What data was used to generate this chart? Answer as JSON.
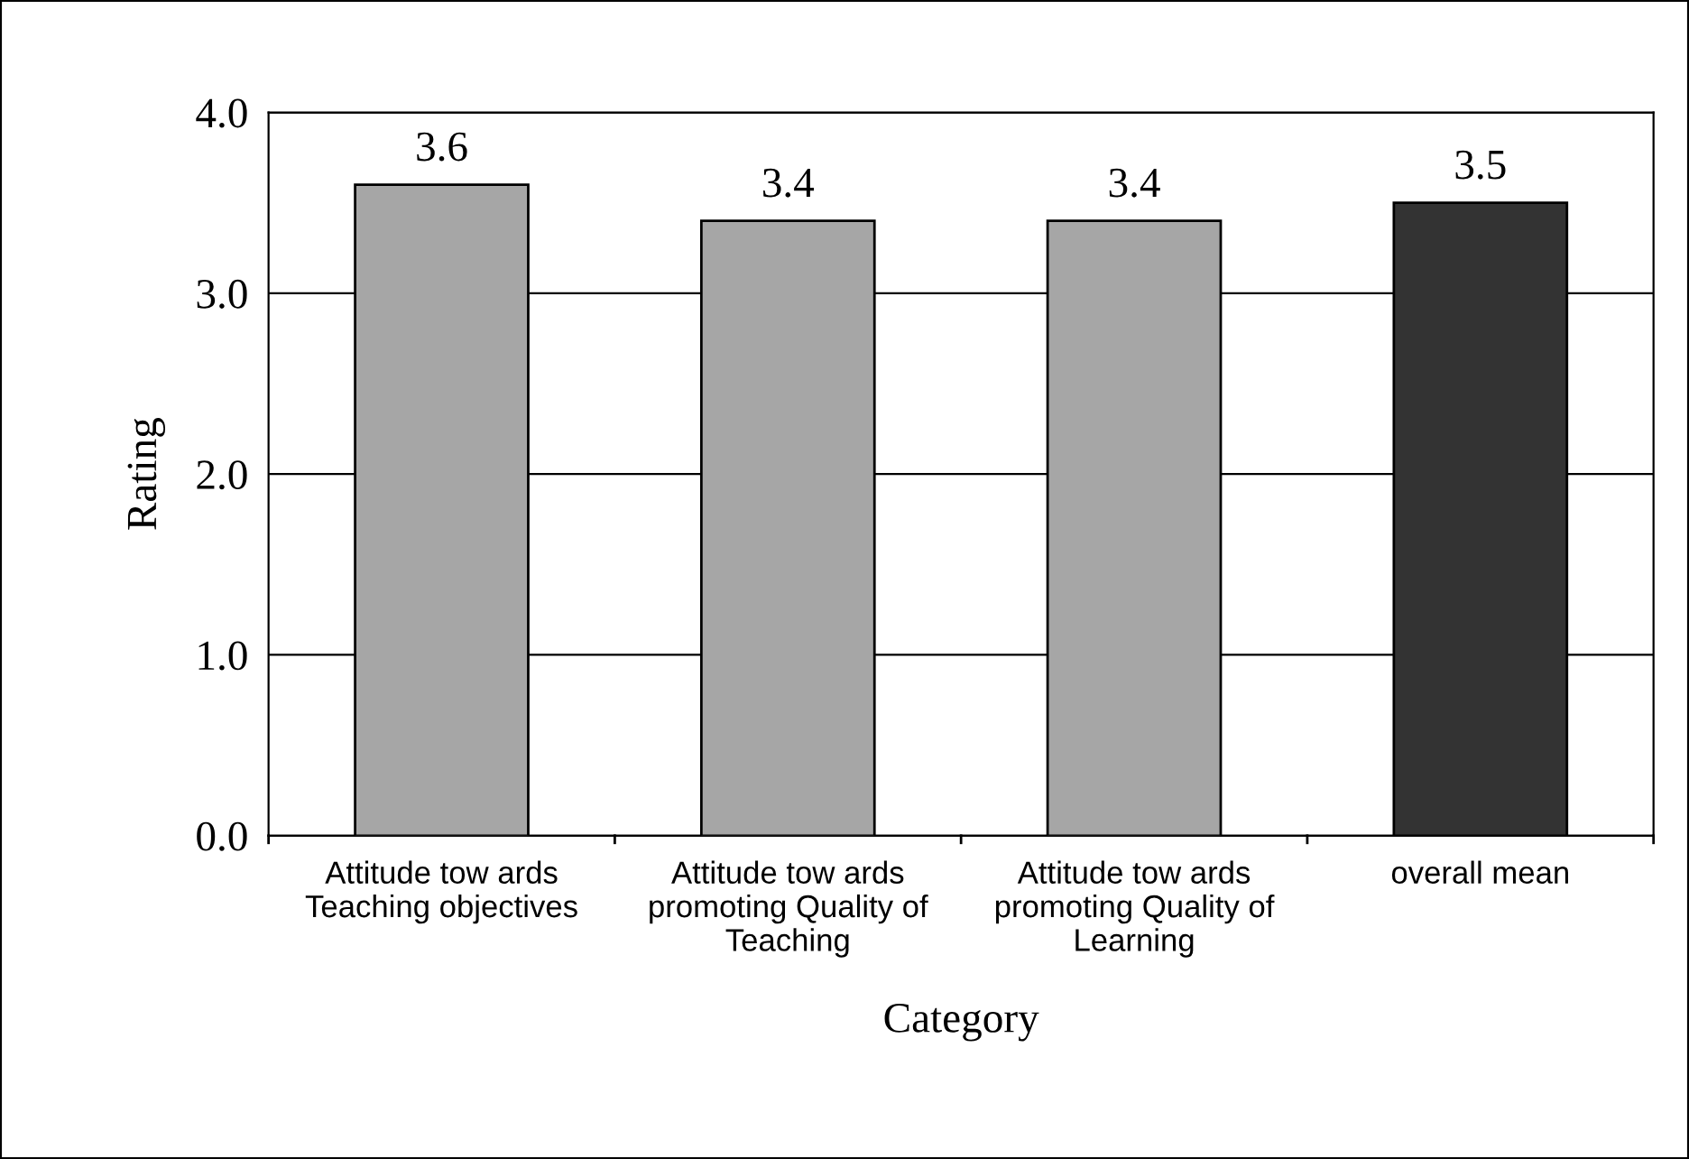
{
  "chart_data": {
    "type": "bar",
    "xlabel": "Category",
    "ylabel": "Rating",
    "categories": [
      "Attitude tow ards\nTeaching objectives",
      "Attitude tow ards\npromoting Quality of\nTeaching",
      "Attitude tow ards\npromoting Quality of\nLearning",
      "overall mean"
    ],
    "values": [
      3.6,
      3.4,
      3.4,
      3.5
    ],
    "colors": [
      "#a6a6a6",
      "#a6a6a6",
      "#a6a6a6",
      "#333333"
    ],
    "ylim": [
      0,
      4
    ],
    "yticks": [
      {
        "value": 0,
        "label": "0.0"
      },
      {
        "value": 1,
        "label": "1.0"
      },
      {
        "value": 2,
        "label": "2.0"
      },
      {
        "value": 3,
        "label": "3.0"
      },
      {
        "value": 4,
        "label": "4.0"
      }
    ],
    "grid": "y",
    "data_labels": true
  }
}
